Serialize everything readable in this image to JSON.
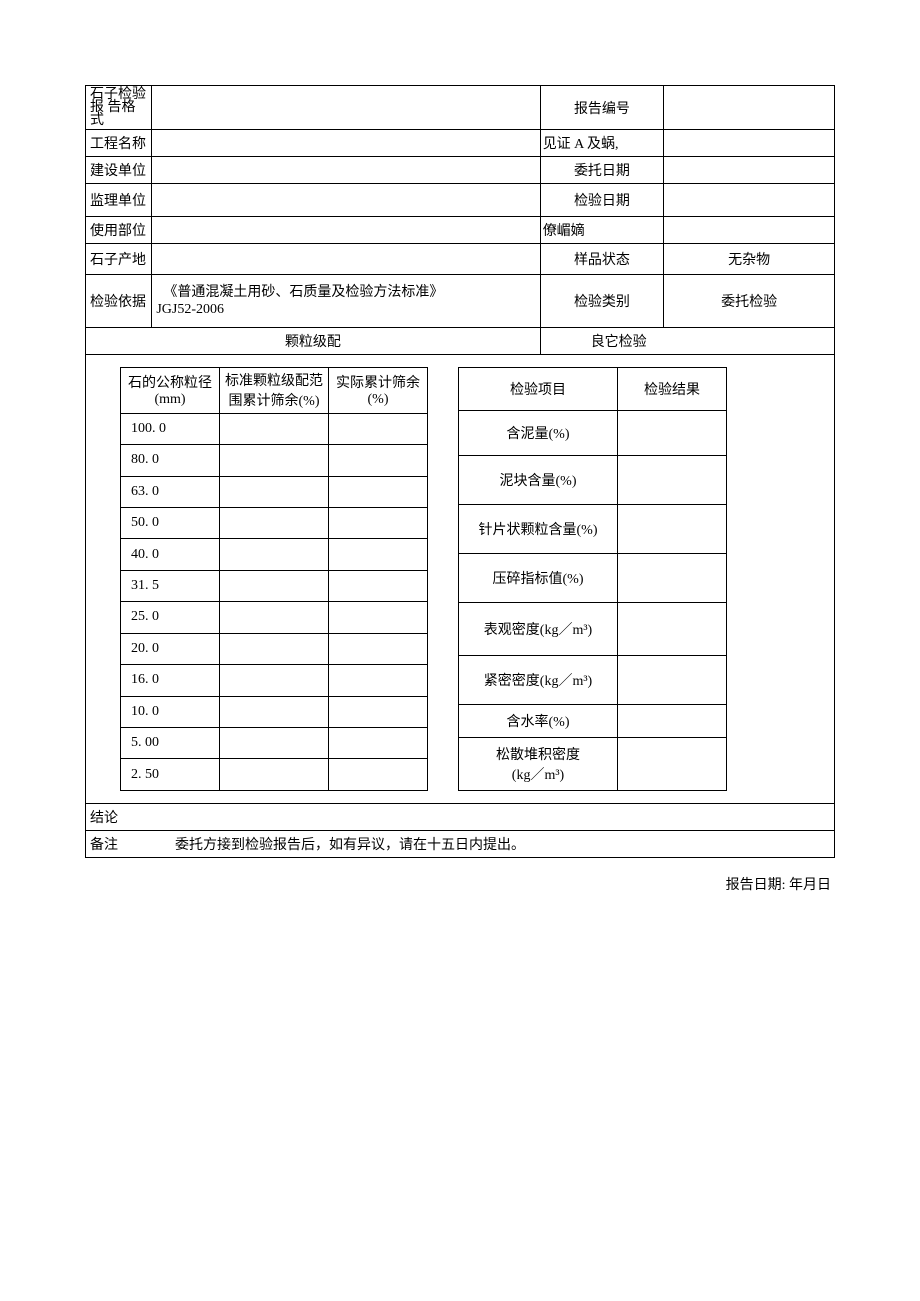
{
  "header": {
    "row1_label": "石子检验报\n告格式",
    "row1_right_label": "报告编号",
    "row2_label": "工程名称",
    "row2_right_label": "见证 A 及蜗,",
    "row3_label": "建设单位",
    "row3_right_label": "委托日期",
    "row4_label": "监理单位",
    "row4_right_label": "检验日期",
    "row5_label": "使用部位",
    "row5_right_label": "僚嵋嫡",
    "row6_label": "石子产地",
    "row6_right_label": "样品状态",
    "row6_right_value": "无杂物",
    "row7_label": "检验依据",
    "row7_value": "  《普通混凝土用砂、石质量及检验方法标准》\nJGJ52-2006",
    "row7_right_label": "检验类别",
    "row7_right_value": "委托检验",
    "section_left_title": "颗粒级配",
    "section_right_title": "良它检验"
  },
  "left_table": {
    "col1": "石的公称粒径\n(mm)",
    "col2": "标准颗粒级配范围累计筛余(%)",
    "col3": "实际累计筛余\n(%)",
    "rows": [
      "100. 0",
      "80. 0",
      "63. 0",
      "50. 0",
      "40. 0",
      "31. 5",
      "25. 0",
      "20. 0",
      "16. 0",
      "10. 0",
      "5. 00",
      "2. 50"
    ]
  },
  "right_table": {
    "colA": "检验项目",
    "colB": "检验结果",
    "items": [
      "含泥量(%)",
      "泥块含量(%)",
      "针片状颗粒含量(%)",
      "压碎指标值(%)",
      "表观密度(kg／m³)",
      "紧密密度(kg／m³)",
      "含水率(%)",
      "松散堆积密度\n(kg／m³)"
    ],
    "item_heights": [
      40,
      44,
      44,
      44,
      48,
      44,
      28,
      48
    ]
  },
  "footer": {
    "conclusion_label": "结论",
    "remark_label": "备注",
    "remark_text": "委托方接到检验报告后，如有异议，请在十五日内提出。",
    "report_date": "报告日期: 年月日"
  }
}
